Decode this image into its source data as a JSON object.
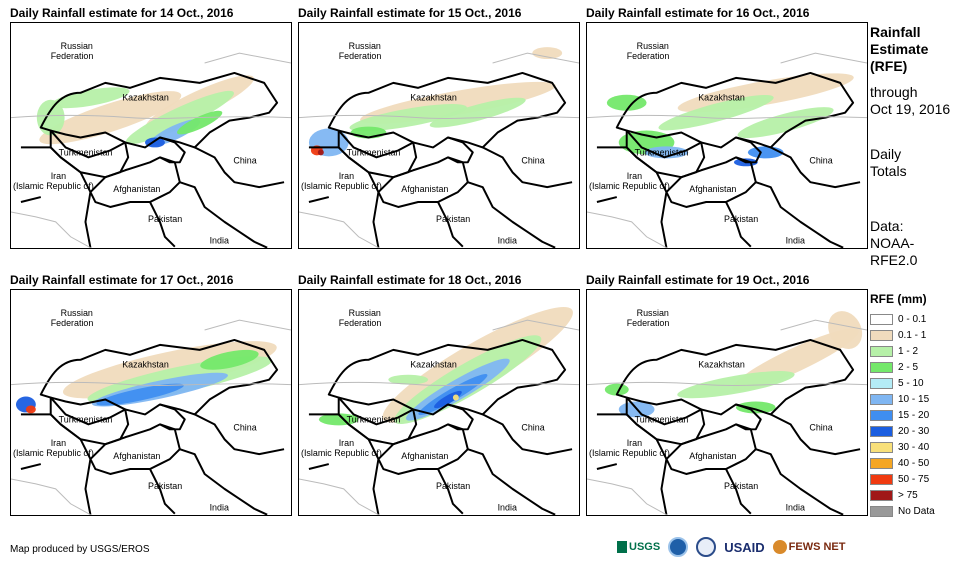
{
  "panels": [
    {
      "title": "Daily Rainfall estimate for 14 Oct., 2016"
    },
    {
      "title": "Daily Rainfall estimate for 15 Oct., 2016"
    },
    {
      "title": "Daily Rainfall estimate for 16 Oct., 2016"
    },
    {
      "title": "Daily Rainfall estimate for 17 Oct., 2016"
    },
    {
      "title": "Daily Rainfall estimate for 18 Oct., 2016"
    },
    {
      "title": "Daily Rainfall estimate for 19 Oct., 2016"
    }
  ],
  "countries": {
    "russia_1": "Russian",
    "russia_2": "Federation",
    "kazakhstan": "Kazakhstan",
    "turkmenistan": "Turkmenistan",
    "iran_1": "Iran",
    "iran_2": "(Islamic Republic of)",
    "afghanistan": "Afghanistan",
    "pakistan": "Pakistan",
    "china": "China",
    "india": "India"
  },
  "side": {
    "title_1": "Rainfall",
    "title_2": "Estimate",
    "title_3": "(RFE)",
    "through": "through",
    "date": "Oct 19, 2016",
    "daily_1": "Daily",
    "daily_2": "Totals",
    "data_1": "Data:",
    "data_2": "NOAA-",
    "data_3": "RFE2.0"
  },
  "legend": {
    "title": "RFE (mm)",
    "items": [
      {
        "label": "0 - 0.1",
        "color": "#ffffff"
      },
      {
        "label": "0.1 - 1",
        "color": "#f0dbbd"
      },
      {
        "label": "1 - 2",
        "color": "#b6f0a8"
      },
      {
        "label": "2 - 5",
        "color": "#74e86a"
      },
      {
        "label": "5 - 10",
        "color": "#b4ecf6"
      },
      {
        "label": "10 - 15",
        "color": "#7fb6f2"
      },
      {
        "label": "15 - 20",
        "color": "#3f8ef0"
      },
      {
        "label": "20 - 30",
        "color": "#1b5ee0"
      },
      {
        "label": "30 - 40",
        "color": "#f8e07a"
      },
      {
        "label": "40 - 50",
        "color": "#f5a623"
      },
      {
        "label": "50 - 75",
        "color": "#f03a10"
      },
      {
        "label": "> 75",
        "color": "#a01818"
      },
      {
        "label": "No Data",
        "color": "#999999"
      }
    ]
  },
  "footer": "Map produced by USGS/EROS",
  "logos": [
    "USGS",
    "USAID",
    "FEWS NET"
  ]
}
